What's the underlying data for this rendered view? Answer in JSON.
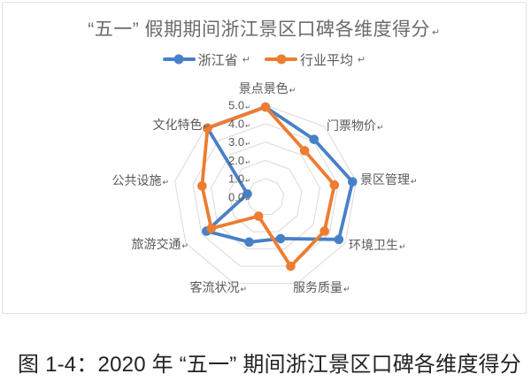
{
  "marks": {
    "paragraph_mark": "↵"
  },
  "caption": {
    "text": "图 1-4：2020 年 “五一” 期间浙江景区口碑各维度得分"
  },
  "chart_data": {
    "type": "radar",
    "title": "“五一” 假期期间浙江景区口碑各维度得分",
    "categories": [
      "景点景色",
      "门票物价",
      "景区管理",
      "环境卫生",
      "服务质量",
      "客流状况",
      "旅游交通",
      "公共设施",
      "文化特色"
    ],
    "series": [
      {
        "name": "浙江省",
        "color": "#4880C8",
        "values": [
          4.9,
          4.1,
          4.8,
          4.6,
          2.4,
          2.6,
          3.7,
          1.0,
          4.9
        ]
      },
      {
        "name": "行业平均",
        "color": "#ED7D31",
        "values": [
          4.9,
          3.3,
          3.8,
          3.7,
          4.0,
          1.1,
          3.4,
          3.5,
          4.9
        ]
      }
    ],
    "radial_axis": {
      "min": 0,
      "max": 5,
      "step": 1,
      "tick_labels": [
        "0.0",
        "1.0",
        "2.0",
        "3.0",
        "4.0",
        "5.0"
      ]
    },
    "grid": true,
    "grid_color": "#D9D9D9",
    "label_color": "#595959",
    "legend_position": "top"
  }
}
